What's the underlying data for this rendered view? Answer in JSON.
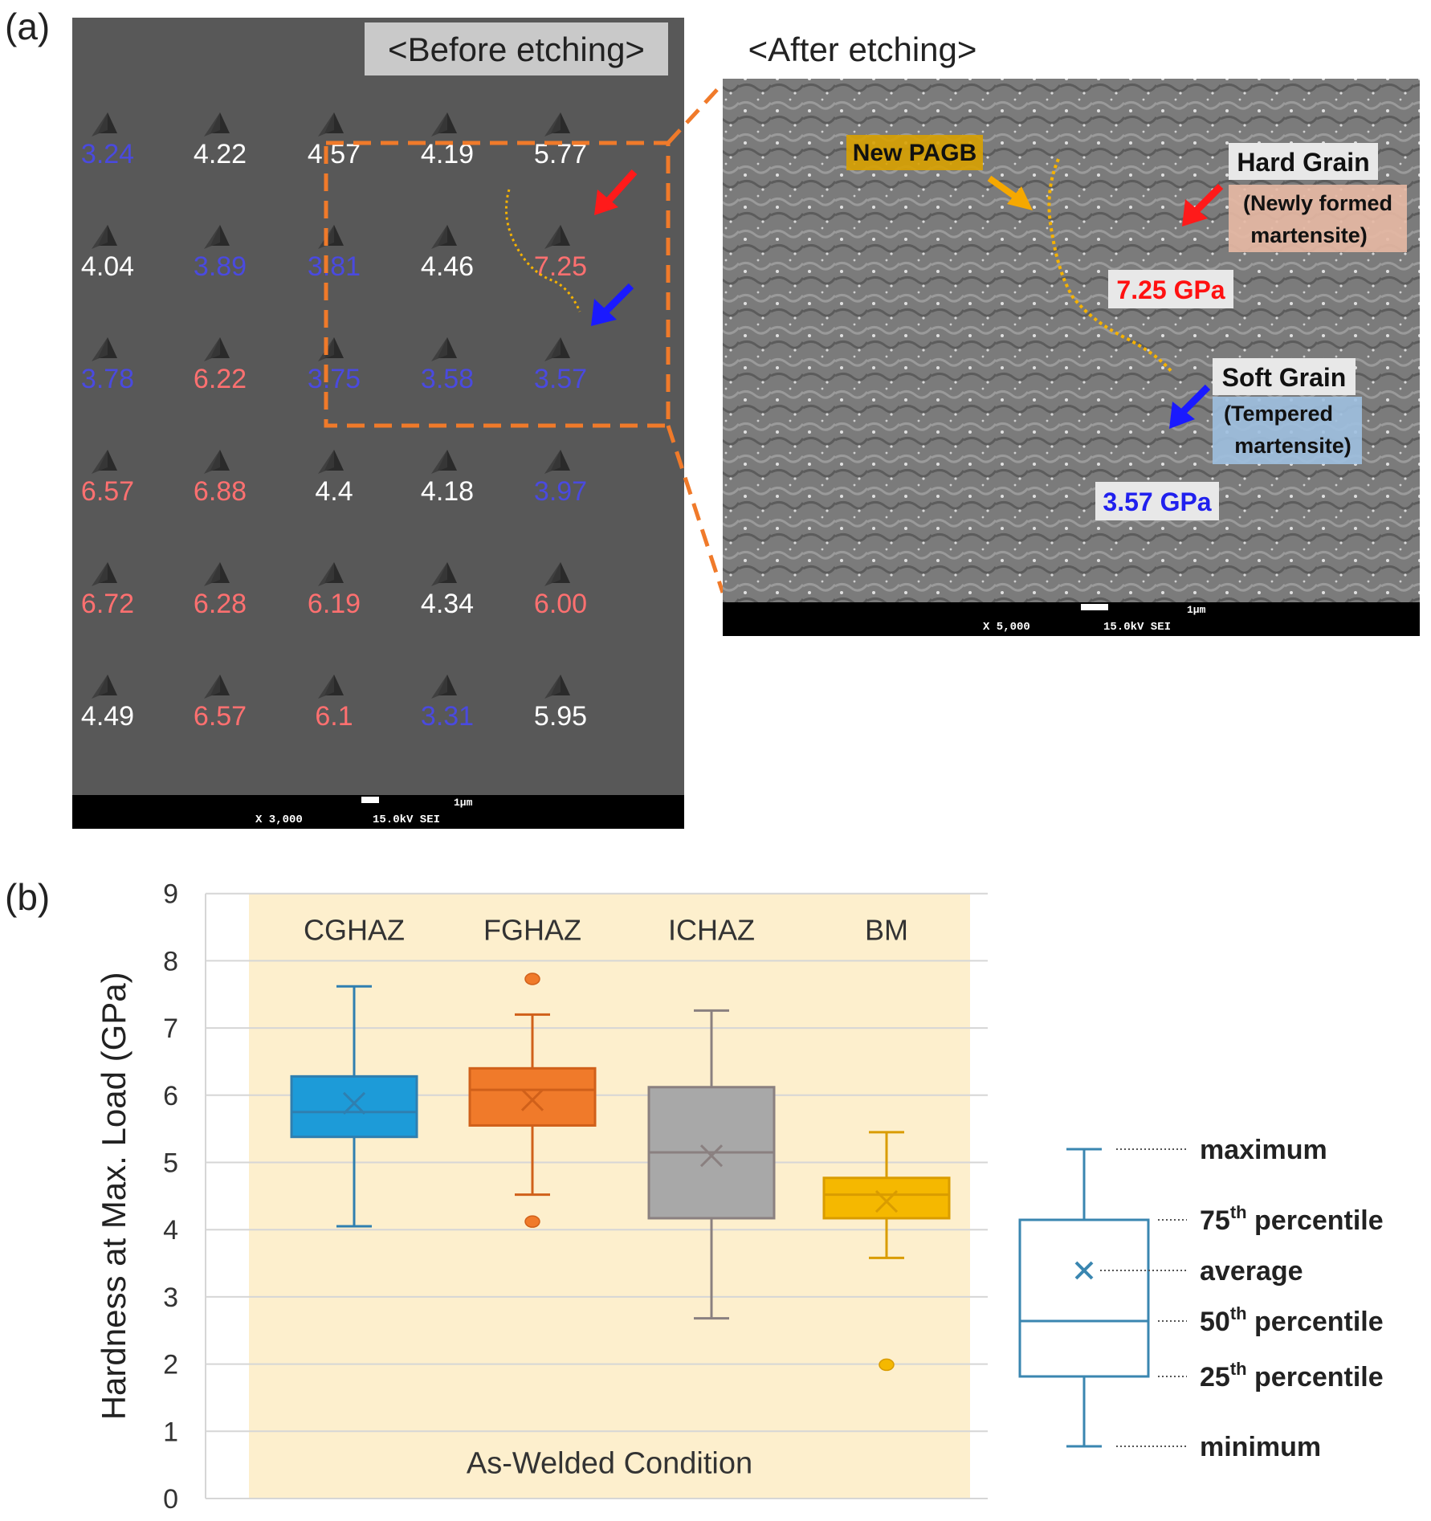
{
  "panel_a": {
    "label": "(a)",
    "before_title": "<Before etching>",
    "after_title": "<After etching>",
    "hardness_grid": [
      [
        {
          "v": "3.24",
          "c": "blue"
        },
        {
          "v": "4.22",
          "c": "white"
        },
        {
          "v": "4.57",
          "c": "white"
        },
        {
          "v": "4.19",
          "c": "white"
        },
        {
          "v": "5.77",
          "c": "white"
        }
      ],
      [
        {
          "v": "4.04",
          "c": "white"
        },
        {
          "v": "3.89",
          "c": "blue"
        },
        {
          "v": "3.81",
          "c": "blue"
        },
        {
          "v": "4.46",
          "c": "white"
        },
        {
          "v": "7.25",
          "c": "red"
        }
      ],
      [
        {
          "v": "3.78",
          "c": "blue"
        },
        {
          "v": "6.22",
          "c": "red"
        },
        {
          "v": "3.75",
          "c": "blue"
        },
        {
          "v": "3.58",
          "c": "blue"
        },
        {
          "v": "3.57",
          "c": "blue"
        }
      ],
      [
        {
          "v": "6.57",
          "c": "red"
        },
        {
          "v": "6.88",
          "c": "red"
        },
        {
          "v": "4.4",
          "c": "white"
        },
        {
          "v": "4.18",
          "c": "white"
        },
        {
          "v": "3.97",
          "c": "blue"
        }
      ],
      [
        {
          "v": "6.72",
          "c": "red"
        },
        {
          "v": "6.28",
          "c": "red"
        },
        {
          "v": "6.19",
          "c": "red"
        },
        {
          "v": "4.34",
          "c": "white"
        },
        {
          "v": "6.00",
          "c": "red"
        }
      ],
      [
        {
          "v": "4.49",
          "c": "white"
        },
        {
          "v": "6.57",
          "c": "red"
        },
        {
          "v": "6.1",
          "c": "red"
        },
        {
          "v": "3.31",
          "c": "blue"
        },
        {
          "v": "5.95",
          "c": "white"
        }
      ]
    ],
    "sem_left": {
      "scale": "1μm",
      "mag": "X 3,000",
      "kv": "15.0kV SEI"
    },
    "sem_right": {
      "scale": "1μm",
      "mag": "X 5,000",
      "kv": "15.0kV SEI"
    },
    "annotations": {
      "new_pagb": "New PAGB",
      "hard_grain": "Hard Grain",
      "hard_grain_desc_1": "(Newly formed",
      "hard_grain_desc_2": "martensite)",
      "hard_value": "7.25 GPa",
      "soft_grain": "Soft Grain",
      "soft_grain_desc_1": "(Tempered",
      "soft_grain_desc_2": "martensite)",
      "soft_value": "3.57 GPa"
    },
    "colors": {
      "blue": "#4a4adf",
      "red": "#ff7070",
      "white": "#ffffff",
      "orange": "#f07a2a",
      "pagb": "#f5b200"
    }
  },
  "panel_b": {
    "label": "(b)"
  },
  "chart_data": {
    "type": "box",
    "ylabel": "Hardness at Max. Load (GPa)",
    "ylim": [
      0,
      9
    ],
    "yticks": [
      0,
      1,
      2,
      3,
      4,
      5,
      6,
      7,
      8,
      9
    ],
    "grid": true,
    "background_label": "As-Welded Condition",
    "categories": [
      "CGHAZ",
      "FGHAZ",
      "ICHAZ",
      "BM"
    ],
    "series": [
      {
        "name": "CGHAZ",
        "min": 4.05,
        "q1": 5.38,
        "median": 5.75,
        "q3": 6.28,
        "max": 7.62,
        "mean": 5.88,
        "outliers": [],
        "color": "#1d9bd8"
      },
      {
        "name": "FGHAZ",
        "min": 4.52,
        "q1": 5.55,
        "median": 6.08,
        "q3": 6.4,
        "max": 7.2,
        "mean": 5.93,
        "outliers": [
          7.73,
          4.12
        ],
        "color": "#f07a2a"
      },
      {
        "name": "ICHAZ",
        "min": 2.68,
        "q1": 4.17,
        "median": 5.15,
        "q3": 6.12,
        "max": 7.26,
        "mean": 5.1,
        "outliers": [],
        "color": "#a8a8a8"
      },
      {
        "name": "BM",
        "min": 3.58,
        "q1": 4.17,
        "median": 4.52,
        "q3": 4.77,
        "max": 5.45,
        "mean": 4.42,
        "outliers": [
          1.99
        ],
        "color": "#f5b800"
      }
    ],
    "legend": {
      "items": [
        {
          "label": "maximum"
        },
        {
          "label": "75",
          "sup": "th",
          "rest": " percentile"
        },
        {
          "label": "average"
        },
        {
          "label": "50",
          "sup": "th",
          "rest": " percentile"
        },
        {
          "label": "25",
          "sup": "th",
          "rest": " percentile"
        },
        {
          "label": "minimum"
        }
      ],
      "color": "#3a86b0"
    }
  }
}
